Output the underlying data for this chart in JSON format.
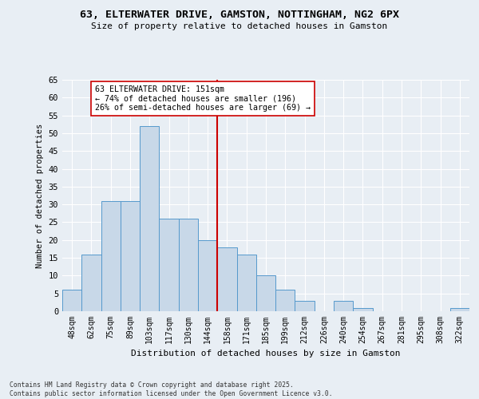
{
  "title": "63, ELTERWATER DRIVE, GAMSTON, NOTTINGHAM, NG2 6PX",
  "subtitle": "Size of property relative to detached houses in Gamston",
  "xlabel": "Distribution of detached houses by size in Gamston",
  "ylabel": "Number of detached properties",
  "bar_labels": [
    "48sqm",
    "62sqm",
    "75sqm",
    "89sqm",
    "103sqm",
    "117sqm",
    "130sqm",
    "144sqm",
    "158sqm",
    "171sqm",
    "185sqm",
    "199sqm",
    "212sqm",
    "226sqm",
    "240sqm",
    "254sqm",
    "267sqm",
    "281sqm",
    "295sqm",
    "308sqm",
    "322sqm"
  ],
  "bar_values": [
    6,
    16,
    31,
    31,
    52,
    26,
    26,
    20,
    18,
    16,
    10,
    6,
    3,
    0,
    3,
    1,
    0,
    0,
    0,
    0,
    1
  ],
  "bar_color": "#c8d8e8",
  "bar_edge_color": "#5599cc",
  "vline_index": 8,
  "vline_color": "#cc0000",
  "annotation_text": "63 ELTERWATER DRIVE: 151sqm\n← 74% of detached houses are smaller (196)\n26% of semi-detached houses are larger (69) →",
  "annotation_box_color": "#ffffff",
  "annotation_box_edge": "#cc0000",
  "ylim": [
    0,
    65
  ],
  "yticks": [
    0,
    5,
    10,
    15,
    20,
    25,
    30,
    35,
    40,
    45,
    50,
    55,
    60,
    65
  ],
  "bg_color": "#e8eef4",
  "grid_color": "#ffffff",
  "footer": "Contains HM Land Registry data © Crown copyright and database right 2025.\nContains public sector information licensed under the Open Government Licence v3.0."
}
